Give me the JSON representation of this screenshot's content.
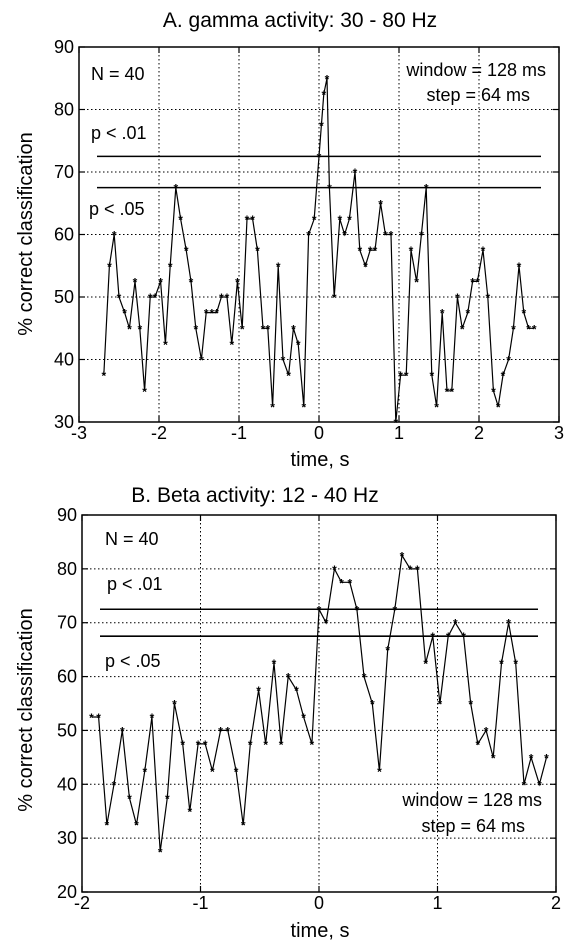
{
  "chart_data": [
    {
      "type": "line",
      "title": "A. gamma activity: 30 - 80 Hz",
      "xlabel": "time, s",
      "ylabel": "% correct classification",
      "xlim": [
        -3,
        3
      ],
      "ylim": [
        30,
        90
      ],
      "xticks": [
        -3,
        -2,
        -1,
        0,
        1,
        2,
        3
      ],
      "yticks": [
        30,
        40,
        50,
        60,
        70,
        80,
        90
      ],
      "grid": true,
      "annotations": {
        "n": "N = 40",
        "p01": "p < .01",
        "p05": "p < .05",
        "window": "window = 128 ms",
        "step": "step = 64 ms"
      },
      "thresholds": [
        72.5,
        67.5
      ],
      "series": [
        {
          "x": [
            -2.69,
            -2.62,
            -2.56,
            -2.5,
            -2.43,
            -2.37,
            -2.3,
            -2.24,
            -2.18,
            -2.11,
            -2.05,
            -1.98,
            -1.92,
            -1.86,
            -1.79,
            -1.73,
            -1.66,
            -1.6,
            -1.54,
            -1.47,
            -1.41,
            -1.34,
            -1.28,
            -1.22,
            -1.15,
            -1.09,
            -1.02,
            -0.96,
            -0.9,
            -0.83,
            -0.77,
            -0.7,
            -0.64,
            -0.58,
            -0.51,
            -0.45,
            -0.38,
            -0.32,
            -0.26,
            -0.19,
            -0.13,
            -0.06,
            0.0,
            0.03,
            0.06,
            0.1,
            0.13,
            0.19,
            0.26,
            0.32,
            0.38,
            0.45,
            0.51,
            0.58,
            0.64,
            0.7,
            0.77,
            0.83,
            0.9,
            0.96,
            1.02,
            1.09,
            1.15,
            1.22,
            1.28,
            1.34,
            1.41,
            1.47,
            1.54,
            1.6,
            1.66,
            1.73,
            1.79,
            1.86,
            1.92,
            1.98,
            2.05,
            2.11,
            2.18,
            2.24,
            2.3,
            2.37,
            2.43,
            2.5,
            2.56,
            2.62,
            2.69
          ],
          "y": [
            37.5,
            55,
            60,
            50,
            47.5,
            45,
            52.5,
            45,
            35,
            50,
            50,
            52.5,
            42.5,
            55,
            67.5,
            62.5,
            57.5,
            52.5,
            45,
            40,
            47.5,
            47.5,
            47.5,
            50,
            50,
            42.5,
            52.5,
            45,
            62.5,
            62.5,
            57.5,
            45,
            45,
            32.5,
            55,
            40,
            37.5,
            45,
            42.5,
            32.5,
            60,
            62.5,
            72.5,
            77.5,
            82.5,
            85,
            67.5,
            50,
            62.5,
            60,
            62.5,
            70,
            57.5,
            55,
            57.5,
            57.5,
            65,
            60,
            60,
            30,
            37.5,
            37.5,
            57.5,
            52.5,
            60,
            67.5,
            37.5,
            32.5,
            47.5,
            35,
            35,
            50,
            45,
            47.5,
            52.5,
            52.5,
            57.5,
            50,
            35,
            32.5,
            37.5,
            40,
            45,
            55,
            47.5,
            45,
            45
          ]
        }
      ]
    },
    {
      "type": "line",
      "title": "B. Beta activity: 12 - 40 Hz",
      "xlabel": "time, s",
      "ylabel": "% correct classification",
      "xlim": [
        -2,
        2
      ],
      "ylim": [
        20,
        90
      ],
      "xticks": [
        -2,
        -1,
        0,
        1,
        2
      ],
      "yticks": [
        20,
        30,
        40,
        50,
        60,
        70,
        80,
        90
      ],
      "grid": true,
      "annotations": {
        "n": "N = 40",
        "p01": "p < .01",
        "p05": "p < .05",
        "window": "window = 128 ms",
        "step": "step = 64 ms"
      },
      "thresholds": [
        72.5,
        67.5
      ],
      "series": [
        {
          "x": [
            -1.92,
            -1.86,
            -1.79,
            -1.73,
            -1.66,
            -1.6,
            -1.54,
            -1.47,
            -1.41,
            -1.34,
            -1.28,
            -1.22,
            -1.15,
            -1.09,
            -1.02,
            -0.96,
            -0.9,
            -0.83,
            -0.77,
            -0.7,
            -0.64,
            -0.58,
            -0.51,
            -0.45,
            -0.38,
            -0.32,
            -0.26,
            -0.19,
            -0.13,
            -0.06,
            0.0,
            0.06,
            0.13,
            0.19,
            0.26,
            0.32,
            0.38,
            0.45,
            0.51,
            0.58,
            0.64,
            0.7,
            0.77,
            0.83,
            0.9,
            0.96,
            1.02,
            1.09,
            1.15,
            1.22,
            1.28,
            1.34,
            1.41,
            1.47,
            1.54,
            1.6,
            1.66,
            1.73,
            1.79,
            1.86,
            1.92
          ],
          "y": [
            52.5,
            52.5,
            32.5,
            40,
            50,
            37.5,
            32.5,
            42.5,
            52.5,
            27.5,
            37.5,
            55,
            47.5,
            35,
            47.5,
            47.5,
            42.5,
            50,
            50,
            42.5,
            32.5,
            47.5,
            57.5,
            47.5,
            62.5,
            47.5,
            60,
            57.5,
            52.5,
            47.5,
            72.5,
            70,
            80,
            77.5,
            77.5,
            72.5,
            60,
            55,
            42.5,
            65,
            72.5,
            82.5,
            80,
            80,
            62.5,
            67.5,
            55,
            67.5,
            70,
            67.5,
            55,
            47.5,
            50,
            45,
            62.5,
            70,
            62.5,
            40,
            45,
            40,
            45
          ]
        }
      ]
    }
  ]
}
